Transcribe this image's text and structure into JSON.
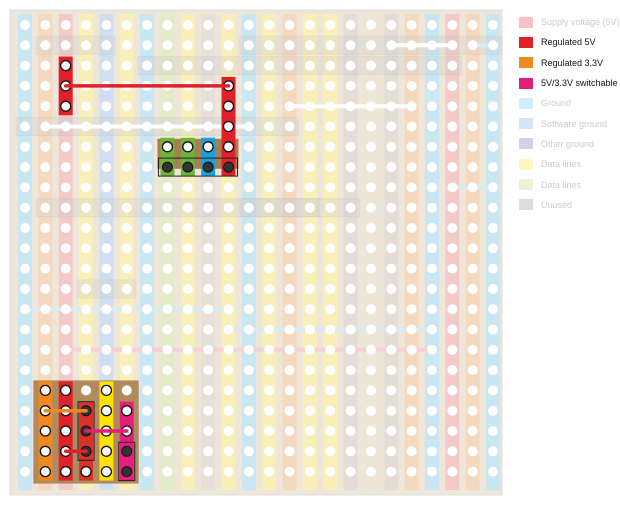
{
  "legend": [
    {
      "label": "Supply voltage (5V)",
      "color": "#e8374a",
      "active": false
    },
    {
      "label": "Regulated 5V",
      "color": "#e0202a",
      "active": true
    },
    {
      "label": "Regulated 3.3V",
      "color": "#f0891e",
      "active": true
    },
    {
      "label": "5V/3.3V switchable",
      "color": "#e41f7b",
      "active": true
    },
    {
      "label": "Ground",
      "color": "#5bc6ef",
      "active": false
    },
    {
      "label": "Software ground",
      "color": "#6ea6da",
      "active": false
    },
    {
      "label": "Other ground",
      "color": "#6d64b8",
      "active": false
    },
    {
      "label": "Data lines",
      "color": "#ffe83a",
      "active": false
    },
    {
      "label": "Data lines",
      "color": "#b9cf7e",
      "active": false
    },
    {
      "label": "Unused",
      "color": "#8a8a8a",
      "active": false
    }
  ],
  "board": {
    "board_color": "#efe6da",
    "column_colors": [
      "#c9e7f2",
      "#f5d9bf",
      "#f3c9c9",
      "#f8f0b8",
      "#cfdff0",
      "#f8f0b8",
      "#c9e7f2",
      "#e3ecc9",
      "#f8f0b8",
      "#e6e0d8",
      "#f8f0b8",
      "#c9e7f2",
      "#f8f0b8",
      "#f5d9bf",
      "#f8f0b8",
      "#f8f0b8",
      "#e3ddd6",
      "#eee5d9",
      "#e3ddd6",
      "#f5d9bf",
      "#c9e7f2",
      "#f3c9c9",
      "#f5d9bf",
      "#c9e7f2"
    ]
  }
}
